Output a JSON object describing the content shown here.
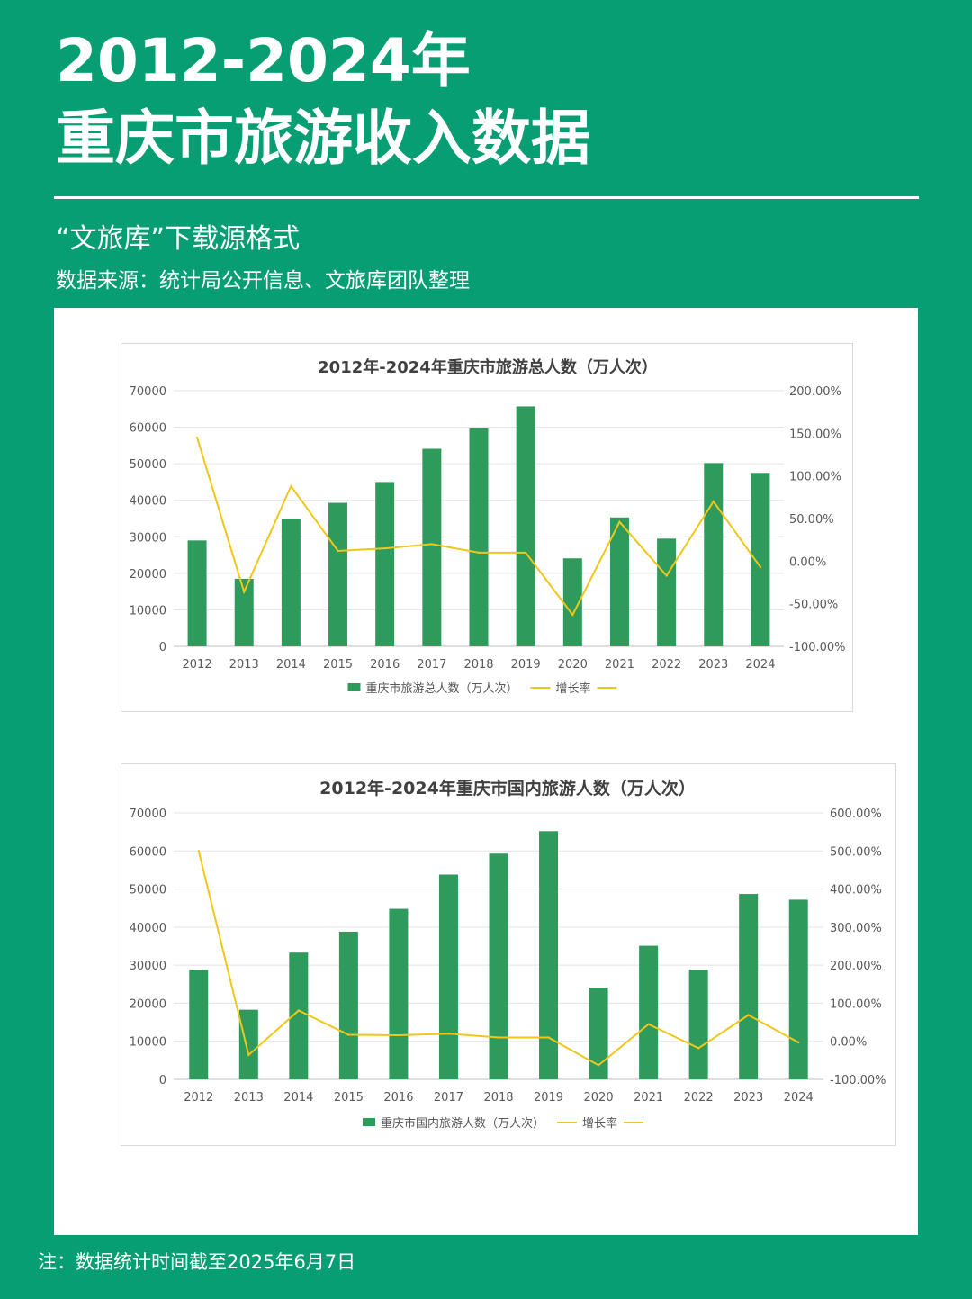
{
  "header": {
    "title_line1": "2012-2024年",
    "title_line2": "重庆市旅游收入数据",
    "subtitle": "“文旅库”下载源格式",
    "source": "数据来源：统计局公开信息、文旅库团队整理"
  },
  "footer": {
    "note": "注：数据统计时间截至2025年6月7日"
  },
  "colors": {
    "background": "#079e73",
    "bar": "#2e9a5c",
    "line": "#f2c619"
  },
  "chart_data": [
    {
      "type": "bar",
      "title": "2012年-2024年重庆市旅游总人数（万人次）",
      "categories": [
        "2012",
        "2013",
        "2014",
        "2015",
        "2016",
        "2017",
        "2018",
        "2019",
        "2020",
        "2021",
        "2022",
        "2023",
        "2024"
      ],
      "y_ticks": [
        "0",
        "10000",
        "20000",
        "30000",
        "40000",
        "50000",
        "60000",
        "70000"
      ],
      "y2_ticks": [
        "-100.00%",
        "-50.00%",
        "0.00%",
        "50.00%",
        "100.00%",
        "150.00%",
        "200.00%"
      ],
      "ylim": [
        0,
        70000
      ],
      "y2lim": [
        -100,
        200
      ],
      "grid": true,
      "legend_position": "bottom",
      "series": [
        {
          "name": "重庆市旅游总人数（万人次）",
          "type": "bar",
          "axis": "left",
          "values": [
            29000,
            18500,
            35000,
            39300,
            45000,
            54100,
            59700,
            65700,
            24100,
            35300,
            29500,
            50200,
            47500
          ]
        },
        {
          "name": "增长率",
          "type": "line",
          "axis": "right",
          "values": [
            145,
            -36,
            88,
            12,
            15,
            20,
            10,
            10,
            -63,
            46,
            -17,
            70,
            -7
          ]
        }
      ]
    },
    {
      "type": "bar",
      "title": "2012年-2024年重庆市国内旅游人数（万人次）",
      "categories": [
        "2012",
        "2013",
        "2014",
        "2015",
        "2016",
        "2017",
        "2018",
        "2019",
        "2020",
        "2021",
        "2022",
        "2023",
        "2024"
      ],
      "y_ticks": [
        "0",
        "10000",
        "20000",
        "30000",
        "40000",
        "50000",
        "60000",
        "70000"
      ],
      "y2_ticks": [
        "-100.00%",
        "0.00%",
        "100.00%",
        "200.00%",
        "300.00%",
        "400.00%",
        "500.00%",
        "600.00%"
      ],
      "ylim": [
        0,
        70000
      ],
      "y2lim": [
        -100,
        600
      ],
      "grid": true,
      "legend_position": "bottom",
      "series": [
        {
          "name": "重庆市国内旅游人数（万人次）",
          "type": "bar",
          "axis": "left",
          "values": [
            28800,
            18300,
            33300,
            38800,
            44800,
            53800,
            59300,
            65200,
            24100,
            35100,
            28800,
            48700,
            47200
          ]
        },
        {
          "name": "增长率",
          "type": "line",
          "axis": "right",
          "values": [
            500,
            -36,
            81,
            17,
            16,
            20,
            10,
            10,
            -63,
            45,
            -18,
            69,
            -3
          ]
        }
      ]
    }
  ]
}
